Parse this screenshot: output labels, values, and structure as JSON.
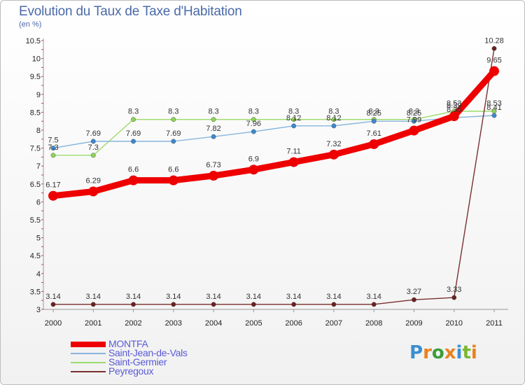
{
  "header": {
    "title": "Evolution du Taux de Taxe d'Habitation",
    "unit": "(en %)"
  },
  "logo": {
    "text": "Proxiti",
    "letters": [
      {
        "ch": "P",
        "color": "#3b8fd1"
      },
      {
        "ch": "r",
        "color": "#e9821f"
      },
      {
        "ch": "o",
        "color": "#3a9e3a"
      },
      {
        "ch": "x",
        "color": "#e9821f"
      },
      {
        "ch": "i",
        "color": "#3b8fd1"
      },
      {
        "ch": "t",
        "color": "#7ab82e"
      },
      {
        "ch": "i",
        "color": "#e9821f"
      }
    ]
  },
  "chart_data": {
    "type": "line",
    "x": [
      "2000",
      "2001",
      "2002",
      "2003",
      "2004",
      "2005",
      "2006",
      "2007",
      "2008",
      "2009",
      "2010",
      "2011"
    ],
    "ylim": [
      3,
      10.5
    ],
    "yticks": [
      "3",
      "3.5",
      "4",
      "4.5",
      "5",
      "5.5",
      "6",
      "6.5",
      "7",
      "7.5",
      "8",
      "8.5",
      "9",
      "9.5",
      "10",
      "10.5"
    ],
    "grid": false,
    "legend_position": "bottom-left",
    "series": [
      {
        "name": "Saint-Germier",
        "color": "#9adc6a",
        "dot": "#8fd45a",
        "values": [
          7.3,
          7.3,
          8.3,
          8.3,
          8.3,
          8.3,
          8.3,
          8.3,
          8.3,
          8.3,
          8.53,
          8.53
        ],
        "labels": [
          "7.3",
          "7.3",
          "8.3",
          "8.3",
          "8.3",
          "8.3",
          "8.3",
          "8.3",
          "8.3",
          "8.3",
          "8.53",
          "8.53"
        ]
      },
      {
        "name": "Saint-Jean-de-Vals",
        "color": "#86b6de",
        "dot": "#3f87cc",
        "values": [
          7.5,
          7.69,
          7.69,
          7.69,
          7.82,
          7.96,
          8.12,
          8.12,
          8.25,
          8.25,
          8.35,
          8.41
        ],
        "labels": [
          "7.5",
          "7.69",
          "7.69",
          "7.69",
          "7.82",
          "7.96",
          "8.12",
          "8.12",
          "8.25",
          "8.25",
          "8.35",
          "8.41"
        ]
      },
      {
        "name": "Peyregoux",
        "color": "#7a3030",
        "dot": "#6a2020",
        "values": [
          3.14,
          3.14,
          3.14,
          3.14,
          3.14,
          3.14,
          3.14,
          3.14,
          3.14,
          3.27,
          3.33,
          10.28
        ],
        "labels": [
          "3.14",
          "3.14",
          "3.14",
          "3.14",
          "3.14",
          "3.14",
          "3.14",
          "3.14",
          "3.14",
          "3.27",
          "3.33",
          "10.28"
        ]
      },
      {
        "name": "MONTFA",
        "color": "#ee0000",
        "dot": "#ee0000",
        "values": [
          6.17,
          6.29,
          6.6,
          6.6,
          6.73,
          6.9,
          7.11,
          7.32,
          7.61,
          7.99,
          8.39,
          9.65
        ],
        "labels": [
          "6.17",
          "6.29",
          "6.6",
          "6.6",
          "6.73",
          "6.9",
          "7.11",
          "7.32",
          "7.61",
          "7.99",
          "8.39",
          "9.65"
        ]
      }
    ],
    "legend": [
      {
        "name": "MONTFA",
        "color": "#ee0000",
        "thick": true
      },
      {
        "name": "Saint-Jean-de-Vals",
        "color": "#86b6de",
        "thick": false
      },
      {
        "name": "Saint-Germier",
        "color": "#9adc6a",
        "thick": false
      },
      {
        "name": "Peyregoux",
        "color": "#7a3030",
        "thick": false
      }
    ]
  }
}
